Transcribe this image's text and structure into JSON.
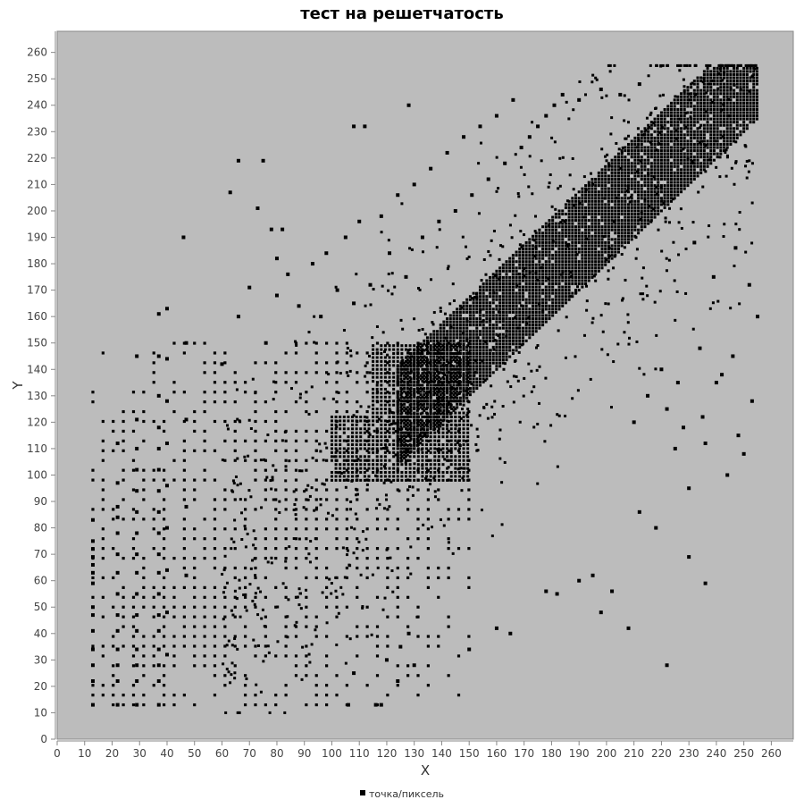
{
  "chart_data": {
    "type": "scatter",
    "title": "тест на решетчатость",
    "xlabel": "X",
    "ylabel": "Y",
    "xlim": [
      0,
      268
    ],
    "ylim": [
      0,
      268
    ],
    "x_ticks": [
      0,
      10,
      20,
      30,
      40,
      50,
      60,
      70,
      80,
      90,
      100,
      110,
      120,
      130,
      140,
      150,
      160,
      170,
      180,
      190,
      200,
      210,
      220,
      230,
      240,
      250,
      260
    ],
    "y_ticks": [
      0,
      10,
      20,
      30,
      40,
      50,
      60,
      70,
      80,
      90,
      100,
      110,
      120,
      130,
      140,
      150,
      160,
      170,
      180,
      190,
      200,
      210,
      220,
      230,
      240,
      250,
      260
    ],
    "grid": false,
    "legend_position": "bottom-center",
    "series": [
      {
        "name": "точка/пиксель",
        "color": "#000000",
        "points": [
          [
            13,
            13
          ],
          [
            13,
            22
          ],
          [
            13,
            28
          ],
          [
            13,
            34
          ],
          [
            13,
            41
          ],
          [
            13,
            47
          ],
          [
            13,
            50
          ],
          [
            13,
            59
          ],
          [
            13,
            63
          ],
          [
            13,
            66
          ],
          [
            13,
            69
          ],
          [
            13,
            72
          ],
          [
            13,
            75
          ],
          [
            13,
            83
          ],
          [
            22,
            13
          ],
          [
            22,
            22
          ],
          [
            22,
            28
          ],
          [
            22,
            34
          ],
          [
            22,
            41
          ],
          [
            22,
            47
          ],
          [
            22,
            55
          ],
          [
            22,
            63
          ],
          [
            22,
            70
          ],
          [
            22,
            78
          ],
          [
            22,
            84
          ],
          [
            22,
            88
          ],
          [
            22,
            97
          ],
          [
            22,
            112
          ],
          [
            29,
            13
          ],
          [
            29,
            22
          ],
          [
            29,
            28
          ],
          [
            29,
            34
          ],
          [
            29,
            41
          ],
          [
            29,
            47
          ],
          [
            29,
            55
          ],
          [
            29,
            63
          ],
          [
            29,
            70
          ],
          [
            29,
            78
          ],
          [
            29,
            86
          ],
          [
            29,
            94
          ],
          [
            29,
            102
          ],
          [
            29,
            110
          ],
          [
            29,
            121
          ],
          [
            29,
            145
          ],
          [
            37,
            13
          ],
          [
            37,
            22
          ],
          [
            37,
            28
          ],
          [
            37,
            34
          ],
          [
            37,
            41
          ],
          [
            37,
            47
          ],
          [
            37,
            55
          ],
          [
            37,
            63
          ],
          [
            37,
            70
          ],
          [
            37,
            78
          ],
          [
            37,
            86
          ],
          [
            37,
            94
          ],
          [
            37,
            102
          ],
          [
            37,
            110
          ],
          [
            37,
            118
          ],
          [
            37,
            130
          ],
          [
            37,
            145
          ],
          [
            37,
            161
          ],
          [
            40,
            32
          ],
          [
            40,
            48
          ],
          [
            40,
            64
          ],
          [
            40,
            80
          ],
          [
            40,
            96
          ],
          [
            40,
            112
          ],
          [
            40,
            128
          ],
          [
            40,
            144
          ],
          [
            40,
            163
          ],
          [
            46,
            190
          ],
          [
            47,
            62
          ],
          [
            47,
            88
          ],
          [
            47,
            121
          ],
          [
            47,
            150
          ],
          [
            63,
            207
          ],
          [
            66,
            219
          ],
          [
            73,
            201
          ],
          [
            75,
            219
          ],
          [
            78,
            193
          ],
          [
            80,
            182
          ],
          [
            82,
            193
          ],
          [
            108,
            232
          ],
          [
            112,
            232
          ],
          [
            128,
            240
          ],
          [
            60,
            142
          ],
          [
            66,
            160
          ],
          [
            70,
            171
          ],
          [
            76,
            150
          ],
          [
            80,
            168
          ],
          [
            84,
            176
          ],
          [
            88,
            164
          ],
          [
            93,
            180
          ],
          [
            96,
            160
          ],
          [
            98,
            184
          ],
          [
            102,
            170
          ],
          [
            105,
            190
          ],
          [
            108,
            165
          ],
          [
            110,
            196
          ],
          [
            114,
            172
          ],
          [
            118,
            198
          ],
          [
            121,
            184
          ],
          [
            124,
            206
          ],
          [
            127,
            175
          ],
          [
            130,
            210
          ],
          [
            133,
            190
          ],
          [
            136,
            216
          ],
          [
            139,
            196
          ],
          [
            142,
            222
          ],
          [
            145,
            200
          ],
          [
            148,
            228
          ],
          [
            151,
            206
          ],
          [
            154,
            232
          ],
          [
            157,
            212
          ],
          [
            160,
            236
          ],
          [
            163,
            218
          ],
          [
            166,
            242
          ],
          [
            169,
            224
          ],
          [
            172,
            228
          ],
          [
            175,
            232
          ],
          [
            178,
            236
          ],
          [
            181,
            240
          ],
          [
            184,
            244
          ],
          [
            190,
            242
          ],
          [
            198,
            246
          ],
          [
            205,
            244
          ],
          [
            212,
            248
          ],
          [
            225,
            110
          ],
          [
            230,
            95
          ],
          [
            235,
            122
          ],
          [
            240,
            135
          ],
          [
            244,
            100
          ],
          [
            248,
            115
          ],
          [
            250,
            108
          ],
          [
            253,
            128
          ],
          [
            255,
            160
          ],
          [
            247,
            186
          ],
          [
            252,
            172
          ],
          [
            239,
            175
          ],
          [
            232,
            188
          ],
          [
            106,
            13
          ],
          [
            116,
            13
          ],
          [
            118,
            13
          ],
          [
            108,
            25
          ],
          [
            120,
            30
          ],
          [
            125,
            35
          ],
          [
            128,
            40
          ],
          [
            130,
            28
          ],
          [
            124,
            22
          ],
          [
            150,
            34
          ],
          [
            160,
            42
          ],
          [
            165,
            40
          ],
          [
            178,
            56
          ],
          [
            182,
            55
          ],
          [
            190,
            60
          ],
          [
            195,
            62
          ],
          [
            198,
            48
          ],
          [
            202,
            56
          ],
          [
            208,
            42
          ],
          [
            222,
            28
          ],
          [
            230,
            69
          ],
          [
            236,
            59
          ],
          [
            212,
            86
          ],
          [
            218,
            80
          ],
          [
            210,
            120
          ],
          [
            215,
            130
          ],
          [
            220,
            140
          ],
          [
            222,
            125
          ],
          [
            226,
            135
          ],
          [
            228,
            118
          ],
          [
            234,
            148
          ],
          [
            236,
            112
          ],
          [
            242,
            138
          ],
          [
            246,
            145
          ]
        ],
        "dense_bands": [
          {
            "x0": 100,
            "x1": 150,
            "y0": 98,
            "y1": 122
          },
          {
            "x0": 115,
            "x1": 150,
            "y0": 122,
            "y1": 150
          }
        ],
        "diagonal_band": {
          "x_start": 124,
          "x_end": 255,
          "lower_offset": -20,
          "upper_offset": 18
        },
        "lattice": {
          "min": 13,
          "max": 150,
          "step": 3.7
        }
      }
    ]
  }
}
